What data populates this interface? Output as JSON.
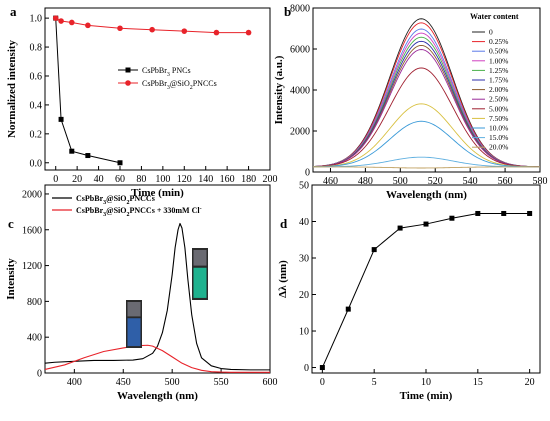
{
  "figure": {
    "panels": [
      {
        "letter": "a"
      },
      {
        "letter": "b"
      },
      {
        "letter": "c"
      },
      {
        "letter": "d"
      }
    ]
  },
  "chart_data": [
    {
      "panel": "a",
      "type": "line",
      "xlabel": "Time (min)",
      "ylabel": "Normalized intensity",
      "xlim": [
        -10,
        200
      ],
      "ylim": [
        -0.05,
        1.07
      ],
      "xticks": [
        "0",
        "20",
        "40",
        "60",
        "80",
        "100",
        "120",
        "140",
        "160",
        "180",
        "200"
      ],
      "yticks": [
        "0.0",
        "0.2",
        "0.4",
        "0.6",
        "0.8",
        "1.0"
      ],
      "legend_position": "center",
      "series": [
        {
          "name": "CsPbBr3 PNCs",
          "color": "#000000",
          "marker": "square",
          "x": [
            0,
            5,
            15,
            30,
            60
          ],
          "y": [
            1.0,
            0.3,
            0.08,
            0.05,
            0.0
          ]
        },
        {
          "name": "CsPbBr3@SiO2PNCCs",
          "color": "#e8232a",
          "marker": "circle",
          "x": [
            0,
            5,
            15,
            30,
            60,
            90,
            120,
            150,
            180
          ],
          "y": [
            1.0,
            0.98,
            0.97,
            0.95,
            0.93,
            0.92,
            0.91,
            0.9,
            0.9
          ]
        }
      ]
    },
    {
      "panel": "b",
      "type": "line",
      "xlabel": "Wavelength (nm)",
      "ylabel": "Intensity (a.u.)",
      "xlim": [
        450,
        580
      ],
      "ylim": [
        0,
        8000
      ],
      "xticks": [
        "460",
        "480",
        "500",
        "520",
        "540",
        "560",
        "580"
      ],
      "yticks": [
        "0",
        "2000",
        "4000",
        "6000",
        "8000"
      ],
      "legend_title": "Water content",
      "legend_position": "right",
      "peak_wavelength": 512,
      "fwhm_sigma": 18,
      "baseline": 250,
      "series": [
        {
          "name": "0",
          "peak": 7300,
          "color": "#222222"
        },
        {
          "name": "0.25%",
          "peak": 7100,
          "color": "#e8232a"
        },
        {
          "name": "0.50%",
          "peak": 6800,
          "color": "#5a7ae8"
        },
        {
          "name": "1.00%",
          "peak": 6600,
          "color": "#d040c0"
        },
        {
          "name": "1.25%",
          "peak": 6400,
          "color": "#4ab04a"
        },
        {
          "name": "1.75%",
          "peak": 6200,
          "color": "#2c2ca8"
        },
        {
          "name": "2.00%",
          "peak": 6000,
          "color": "#8a5a2a"
        },
        {
          "name": "2.50%",
          "peak": 5800,
          "color": "#9a2a9a"
        },
        {
          "name": "5.00%",
          "peak": 4900,
          "color": "#a02030"
        },
        {
          "name": "7.50%",
          "peak": 3150,
          "color": "#d8c040"
        },
        {
          "name": "10.0%",
          "peak": 2300,
          "color": "#3a9ad8"
        },
        {
          "name": "15.0%",
          "peak": 550,
          "color": "#60b0e0"
        },
        {
          "name": "20.0%",
          "peak": 20,
          "color": "#c0a060"
        }
      ]
    },
    {
      "panel": "c",
      "type": "line",
      "xlabel": "Wavelength (nm)",
      "ylabel": "Intensity",
      "xlim": [
        370,
        600
      ],
      "ylim": [
        0,
        2100
      ],
      "xticks": [
        "400",
        "450",
        "500",
        "550",
        "600"
      ],
      "yticks": [
        "0",
        "400",
        "800",
        "1200",
        "1600",
        "2000"
      ],
      "legend_position": "top-left",
      "series": [
        {
          "name": "CsPbBr3@SiO2PNCCs",
          "color": "#000000",
          "x": [
            370,
            380,
            400,
            420,
            440,
            460,
            470,
            480,
            485,
            490,
            495,
            500,
            503,
            506,
            508,
            510,
            513,
            516,
            520,
            525,
            530,
            540,
            550,
            560,
            580,
            600
          ],
          "y": [
            110,
            120,
            130,
            140,
            140,
            145,
            160,
            220,
            300,
            450,
            700,
            1100,
            1400,
            1600,
            1670,
            1620,
            1400,
            1050,
            650,
            330,
            170,
            80,
            50,
            40,
            35,
            35
          ]
        },
        {
          "name": "CsPbBr3@SiO2PNCCs + 330mM Cl-",
          "color": "#e8232a",
          "x": [
            370,
            390,
            410,
            430,
            450,
            465,
            475,
            480,
            490,
            500,
            510,
            520,
            530,
            540,
            550,
            560,
            580,
            600
          ],
          "y": [
            40,
            90,
            170,
            240,
            280,
            305,
            310,
            300,
            250,
            180,
            110,
            60,
            30,
            15,
            10,
            8,
            8,
            8
          ]
        }
      ]
    },
    {
      "panel": "d",
      "type": "line",
      "xlabel": "Time (min)",
      "ylabel": "Δλ (nm)",
      "xlim": [
        -1,
        21
      ],
      "ylim": [
        -1.5,
        50
      ],
      "xticks": [
        "0",
        "5",
        "10",
        "15",
        "20"
      ],
      "yticks": [
        "0",
        "10",
        "20",
        "30",
        "40",
        "50"
      ],
      "series": [
        {
          "name": "",
          "color": "#000000",
          "marker": "square",
          "x": [
            0,
            2.5,
            5,
            7.5,
            10,
            12.5,
            15,
            17.5,
            20
          ],
          "y": [
            0,
            16,
            32.3,
            38.2,
            39.3,
            40.9,
            42.2,
            42.2,
            42.2
          ]
        }
      ]
    }
  ]
}
